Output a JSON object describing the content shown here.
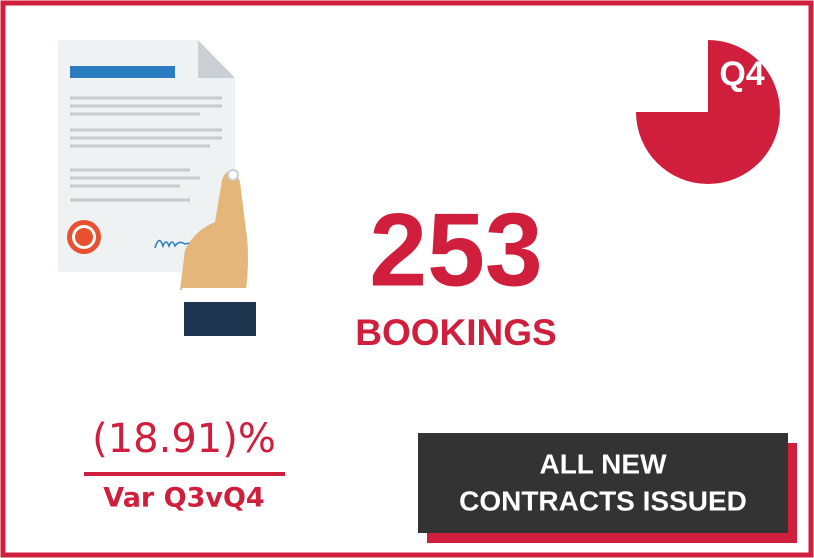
{
  "badge": "Q4",
  "metric": {
    "value": 253,
    "label": "BOOKINGS"
  },
  "variance": {
    "value": "(18.91)%",
    "label": "Var Q3vQ4"
  },
  "callout": {
    "lines": [
      "ALL NEW",
      "CONTRACTS ISSUED"
    ]
  }
}
